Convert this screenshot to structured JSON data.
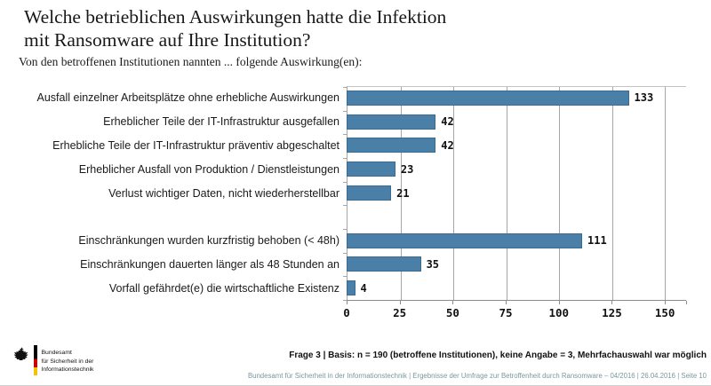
{
  "header": {
    "title_lines": [
      "Welche betrieblichen Auswirkungen hatte die Infektion",
      "mit Ransomware auf Ihre Institution?"
    ],
    "subtitle": "Von den betroffenen Institutionen nannten ... folgende Auswirkung(en):"
  },
  "chart_data": {
    "type": "bar",
    "orientation": "horizontal",
    "categories": [
      "Ausfall einzelner Arbeitsplätze ohne erhebliche Auswirkungen",
      "Erheblicher Teile der IT-Infrastruktur ausgefallen",
      "Erhebliche Teile der IT-Infrastruktur präventiv abgeschaltet",
      "Erheblicher Ausfall von Produktion / Dienstleistungen",
      "Verlust wichtiger Daten, nicht wiederherstellbar",
      "Einschränkungen wurden kurzfristig behoben (< 48h)",
      "Einschränkungen dauerten länger als 48 Stunden an",
      "Vorfall gefährdet(e) die wirtschaftliche Existenz"
    ],
    "values": [
      133,
      42,
      42,
      23,
      21,
      111,
      35,
      4
    ],
    "gap_after_index": 4,
    "xticks": [
      0,
      25,
      50,
      75,
      100,
      125,
      150
    ],
    "xlim": [
      0,
      160
    ],
    "title": "",
    "xlabel": "",
    "ylabel": "",
    "grid": true,
    "legend": false,
    "bar_color": "#4A80A8",
    "bar_border_color": "#3A6B93",
    "gridline_color": "#A6A6A6"
  },
  "footer": {
    "note": "Frage 3 | Basis: n = 190 (betroffene Institutionen), keine Angabe = 3, Mehrfachauswahl war möglich",
    "credit": "Bundesamt für Sicherheit in der Informationstechnik | Ergebnisse der Umfrage zur Betroffenheit durch Ransomware – 04/2016 | 26.04.2016 | Seite 10"
  },
  "logo": {
    "lines": [
      "Bundesamt",
      "für Sicherheit in der",
      "Informationstechnik"
    ]
  }
}
